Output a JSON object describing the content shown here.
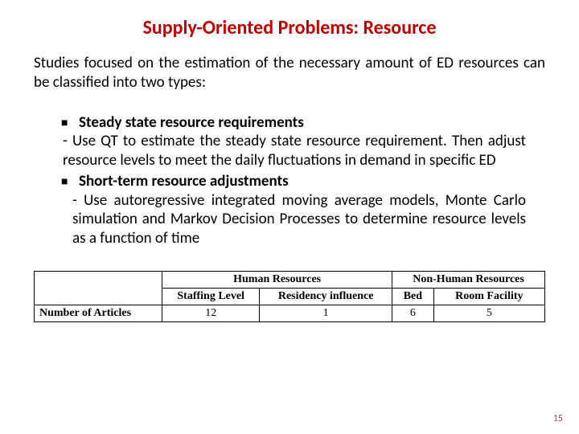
{
  "title": "Supply-Oriented Problems: Resource",
  "intro": "Studies focused on the estimation of the necessary amount of ED resources can be classified into two types:",
  "bullets": [
    {
      "label": "Steady state resource requirements",
      "desc": " - Use QT to estimate the steady state resource requirement. Then adjust resource levels to meet the daily fluctuations in demand in specific ED"
    },
    {
      "label": "Short-term resource adjustments",
      "desc": "  - Use autoregressive integrated moving average models, Monte Carlo simulation and Markov Decision Processes to determine resource levels as a function of time"
    }
  ],
  "table": {
    "group1": "Human Resources",
    "group2": "Non-Human Resources",
    "sub1": "Staffing Level",
    "sub2": "Residency influence",
    "sub3": "Bed",
    "sub4": "Room Facility",
    "rowLabel": "Number of Articles",
    "v1": "12",
    "v2": "1",
    "v3": "6",
    "v4": "5"
  },
  "pageNum": "15",
  "colors": {
    "titleColor": "#c00000",
    "textColor": "#000000",
    "pageNumColor": "#a94848",
    "bg": "#ffffff"
  }
}
